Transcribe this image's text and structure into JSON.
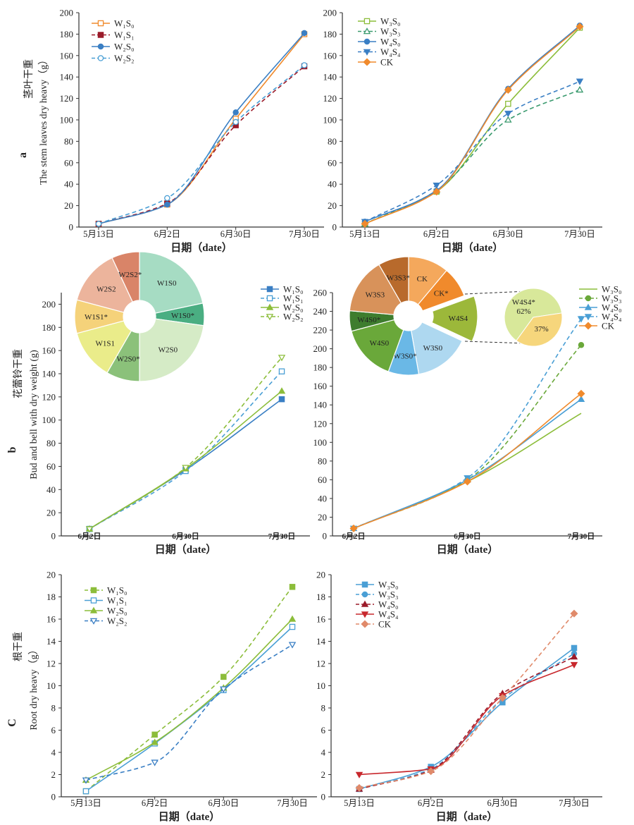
{
  "figure": {
    "rows": [
      {
        "letter": "a",
        "ylabel_cn": "茎叶干重",
        "ylabel_en": "The stem leaves dry heavy（g）"
      },
      {
        "letter": "b",
        "ylabel_cn": "花蕾铃干重",
        "ylabel_en": "Bud and bell with dry weight (g)"
      },
      {
        "letter": "C",
        "ylabel_cn": "根干重",
        "ylabel_en": "Root dry heavy（g）"
      }
    ],
    "xlabel": "日期（date）"
  },
  "colors": {
    "orange": "#f08a2c",
    "darkred": "#9b1b2a",
    "blue": "#3a7fc4",
    "lightblue": "#4a9fd5",
    "green": "#8cbd3a",
    "teal": "#3a9a6e",
    "red": "#c8282d",
    "salmon": "#e08a6a"
  },
  "chart_data": [
    {
      "type": "line",
      "title": "",
      "categories": [
        "5月13日",
        "6月2日",
        "6月30日",
        "7月30日"
      ],
      "xlabel": "日期（date）",
      "ylabel": "The stem leaves dry heavy（g）",
      "ylim": [
        0,
        200
      ],
      "yticks": [
        0,
        20,
        40,
        60,
        80,
        100,
        120,
        140,
        160,
        180,
        200
      ],
      "legend_position": "top-left",
      "series": [
        {
          "name": "W₁S₀",
          "values": [
            3,
            21,
            101,
            180
          ],
          "color": "#f08a2c",
          "dash": false,
          "marker": "square-open"
        },
        {
          "name": "W₁S₁",
          "values": [
            3,
            22,
            95,
            150
          ],
          "color": "#9b1b2a",
          "dash": true,
          "marker": "square"
        },
        {
          "name": "W₂S₀",
          "values": [
            3,
            21,
            107,
            181
          ],
          "color": "#3a7fc4",
          "dash": false,
          "marker": "circle"
        },
        {
          "name": "W₂S₂",
          "values": [
            3,
            27,
            98,
            151
          ],
          "color": "#4a9fd5",
          "dash": true,
          "marker": "circle-open"
        }
      ]
    },
    {
      "type": "line",
      "title": "",
      "categories": [
        "5月13日",
        "6月2日",
        "6月30日",
        "7月30日"
      ],
      "xlabel": "日期（date）",
      "ylabel": "",
      "ylim": [
        0,
        200
      ],
      "yticks": [
        0,
        20,
        40,
        60,
        80,
        100,
        120,
        140,
        160,
        180,
        200
      ],
      "legend_position": "top-left",
      "series": [
        {
          "name": "W₃S₀",
          "values": [
            3,
            33,
            115,
            186
          ],
          "color": "#8cbd3a",
          "dash": false,
          "marker": "square-open"
        },
        {
          "name": "W₃S₃",
          "values": [
            3,
            34,
            100,
            128
          ],
          "color": "#3a9a6e",
          "dash": true,
          "marker": "triangle-open"
        },
        {
          "name": "W₄S₀",
          "values": [
            5,
            34,
            129,
            188
          ],
          "color": "#3a7fc4",
          "dash": false,
          "marker": "circle"
        },
        {
          "name": "W₄S₄",
          "values": [
            5,
            39,
            106,
            136
          ],
          "color": "#3a7fc4",
          "dash": true,
          "marker": "triangle-down"
        },
        {
          "name": "CK",
          "values": [
            3,
            33,
            128,
            187
          ],
          "color": "#f08a2c",
          "dash": false,
          "marker": "diamond"
        }
      ]
    },
    {
      "type": "line",
      "title": "",
      "categories": [
        "6月2日",
        "6月30日",
        "7月30日"
      ],
      "xlabel": "日期（date）",
      "ylabel": "Bud and bell with dry weight (g)",
      "ylim": [
        0,
        210
      ],
      "yticks": [
        0,
        20,
        40,
        60,
        80,
        100,
        120,
        140,
        160,
        180,
        200
      ],
      "legend_position": "top-right",
      "series": [
        {
          "name": "W₁S₀",
          "values": [
            6,
            57,
            118
          ],
          "color": "#3a7fc4",
          "dash": false,
          "marker": "square"
        },
        {
          "name": "W₁S₁",
          "values": [
            6,
            56,
            142
          ],
          "color": "#4a9fd5",
          "dash": true,
          "marker": "square-open"
        },
        {
          "name": "W₂S₀",
          "values": [
            6,
            58,
            125
          ],
          "color": "#8cbd3a",
          "dash": false,
          "marker": "triangle"
        },
        {
          "name": "W₂S₂",
          "values": [
            6,
            59,
            154
          ],
          "color": "#8cbd3a",
          "dash": true,
          "marker": "triangle-down-open"
        }
      ],
      "inset_pie": {
        "type": "pie",
        "slices": [
          {
            "label": "W1S0",
            "color": "#a6dcc3"
          },
          {
            "label": "W1S0*",
            "color": "#4aae82"
          },
          {
            "label": "W2S0",
            "color": "#d5ebc6"
          },
          {
            "label": "W2S0*",
            "color": "#8bc17a"
          },
          {
            "label": "W1S1",
            "color": "#eaec8a"
          },
          {
            "label": "W1S1*",
            "color": "#f5d27a"
          },
          {
            "label": "W2S2",
            "color": "#ecb49c"
          },
          {
            "label": "W2S2*",
            "color": "#d98468"
          }
        ]
      }
    },
    {
      "type": "line",
      "title": "",
      "categories": [
        "6月2日",
        "6月30日",
        "7月30日"
      ],
      "xlabel": "日期（date）",
      "ylabel": "",
      "ylim": [
        0,
        260
      ],
      "yticks": [
        0,
        20,
        40,
        60,
        80,
        100,
        120,
        140,
        160,
        180,
        200,
        220,
        240,
        260
      ],
      "legend_position": "top-right",
      "series": [
        {
          "name": "W₃S₀",
          "values": [
            8,
            58,
            131
          ],
          "color": "#8cbd3a",
          "dash": false,
          "marker": "none"
        },
        {
          "name": "W₃S₃",
          "values": [
            8,
            60,
            204
          ],
          "color": "#6aa83a",
          "dash": true,
          "marker": "circle"
        },
        {
          "name": "W₄S₀",
          "values": [
            8,
            60,
            146
          ],
          "color": "#4a9fd5",
          "dash": false,
          "marker": "triangle"
        },
        {
          "name": "W₄S₄",
          "values": [
            8,
            62,
            232
          ],
          "color": "#4a9fd5",
          "dash": true,
          "marker": "triangle-down"
        },
        {
          "name": "CK",
          "values": [
            8,
            58,
            152
          ],
          "color": "#f08a2c",
          "dash": false,
          "marker": "diamond"
        }
      ],
      "inset_pie": {
        "type": "pie",
        "slices": [
          {
            "label": "CK",
            "color": "#f4a85c"
          },
          {
            "label": "CK*",
            "color": "#f08a2c"
          },
          {
            "label": "W4S4",
            "color": "#9cb83a"
          },
          {
            "label": "W3S0",
            "color": "#aed8f0"
          },
          {
            "label": "W3S0*",
            "color": "#6ab8e6"
          },
          {
            "label": "W4S0",
            "color": "#6aa83a"
          },
          {
            "label": "W4S0*",
            "color": "#3e7d2e"
          },
          {
            "label": "W3S3",
            "color": "#d8925a"
          },
          {
            "label": "W3S3*",
            "color": "#b86a2c"
          }
        ],
        "detail_pie": {
          "slices": [
            {
              "label": "W4S4*",
              "value": 62,
              "value_label": "62%",
              "color": "#d8e89a"
            },
            {
              "label": "",
              "value": 37,
              "value_label": "37%",
              "color": "#f6d67c"
            }
          ]
        }
      }
    },
    {
      "type": "line",
      "title": "",
      "categories": [
        "5月13日",
        "6月2日",
        "6月30日",
        "7月30日"
      ],
      "xlabel": "日期（date）",
      "ylabel": "Root dry heavy（g）",
      "ylim": [
        0,
        20
      ],
      "yticks": [
        0,
        2,
        4,
        6,
        8,
        10,
        12,
        14,
        16,
        18,
        20
      ],
      "legend_position": "top-left",
      "series": [
        {
          "name": "W₁S₀",
          "values": [
            0.5,
            5.6,
            10.8,
            18.9
          ],
          "color": "#8cbd3a",
          "dash": true,
          "marker": "square"
        },
        {
          "name": "W₁S₁",
          "values": [
            0.5,
            4.8,
            9.6,
            15.3
          ],
          "color": "#4a9fd5",
          "dash": false,
          "marker": "square-open"
        },
        {
          "name": "W₂S₀",
          "values": [
            1.5,
            4.9,
            9.8,
            16.0
          ],
          "color": "#8cbd3a",
          "dash": false,
          "marker": "triangle"
        },
        {
          "name": "W₂S₂",
          "values": [
            1.5,
            3.1,
            9.7,
            13.7
          ],
          "color": "#3a7fc4",
          "dash": true,
          "marker": "triangle-down-open"
        }
      ]
    },
    {
      "type": "line",
      "title": "",
      "categories": [
        "5月13日",
        "6月2日",
        "6月30日",
        "7月30日"
      ],
      "xlabel": "日期（date）",
      "ylabel": "",
      "ylim": [
        0,
        20
      ],
      "yticks": [
        0,
        2,
        4,
        6,
        8,
        10,
        12,
        14,
        16,
        18,
        20
      ],
      "legend_position": "top-left",
      "series": [
        {
          "name": "W₃S₀",
          "values": [
            0.7,
            2.7,
            8.5,
            13.4
          ],
          "color": "#4a9fd5",
          "dash": false,
          "marker": "square"
        },
        {
          "name": "W₃S₃",
          "values": [
            0.7,
            2.5,
            8.8,
            12.9
          ],
          "color": "#4a9fd5",
          "dash": true,
          "marker": "circle"
        },
        {
          "name": "W₄S₀",
          "values": [
            0.7,
            2.4,
            9.3,
            12.6
          ],
          "color": "#9b1b2a",
          "dash": true,
          "marker": "triangle"
        },
        {
          "name": "W₄S₄",
          "values": [
            2.0,
            2.5,
            9.1,
            11.9
          ],
          "color": "#c8282d",
          "dash": false,
          "marker": "triangle-down"
        },
        {
          "name": "CK",
          "values": [
            0.8,
            2.3,
            8.9,
            16.5
          ],
          "color": "#e08a6a",
          "dash": true,
          "marker": "diamond"
        }
      ]
    }
  ]
}
